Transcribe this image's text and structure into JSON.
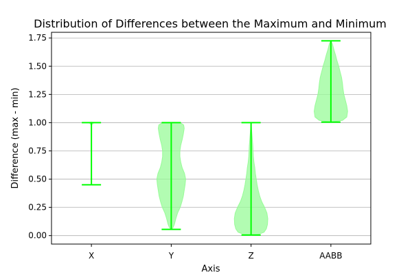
{
  "chart_data": {
    "type": "violin",
    "title": "Distribution of Differences between the Maximum and Minimum",
    "xlabel": "Axis",
    "ylabel": "Difference (max - min)",
    "categories": [
      "X",
      "Y",
      "Z",
      "AABB"
    ],
    "ylim": [
      -0.075,
      1.8
    ],
    "yticks": [
      "0.00",
      "0.25",
      "0.50",
      "0.75",
      "1.00",
      "1.25",
      "1.50",
      "1.75"
    ],
    "grid": "y",
    "colors": {
      "body": "#98fb98",
      "line": "#00ff00"
    },
    "series": [
      {
        "category": "X",
        "min": 0.45,
        "max": 1.0,
        "profile": [
          [
            0.45,
            0.0
          ],
          [
            0.97,
            0.0
          ],
          [
            0.98,
            0.01
          ],
          [
            0.99,
            0.04
          ],
          [
            1.0,
            0.08
          ],
          [
            1.005,
            0.02
          ]
        ]
      },
      {
        "category": "Y",
        "min": 0.055,
        "max": 1.0,
        "profile": [
          [
            0.055,
            0.0
          ],
          [
            0.07,
            0.06
          ],
          [
            0.1,
            0.11
          ],
          [
            0.15,
            0.16
          ],
          [
            0.2,
            0.22
          ],
          [
            0.25,
            0.31
          ],
          [
            0.3,
            0.37
          ],
          [
            0.35,
            0.42
          ],
          [
            0.4,
            0.45
          ],
          [
            0.45,
            0.48
          ],
          [
            0.5,
            0.5
          ],
          [
            0.55,
            0.46
          ],
          [
            0.6,
            0.38
          ],
          [
            0.65,
            0.33
          ],
          [
            0.7,
            0.3
          ],
          [
            0.75,
            0.3
          ],
          [
            0.8,
            0.33
          ],
          [
            0.85,
            0.38
          ],
          [
            0.9,
            0.42
          ],
          [
            0.95,
            0.45
          ],
          [
            0.98,
            0.43
          ],
          [
            1.0,
            0.3
          ]
        ]
      },
      {
        "category": "Z",
        "min": 0.005,
        "max": 1.0,
        "profile": [
          [
            0.005,
            0.0
          ],
          [
            0.01,
            0.25
          ],
          [
            0.03,
            0.45
          ],
          [
            0.06,
            0.53
          ],
          [
            0.1,
            0.57
          ],
          [
            0.15,
            0.58
          ],
          [
            0.2,
            0.55
          ],
          [
            0.25,
            0.47
          ],
          [
            0.3,
            0.37
          ],
          [
            0.35,
            0.3
          ],
          [
            0.4,
            0.25
          ],
          [
            0.45,
            0.21
          ],
          [
            0.5,
            0.18
          ],
          [
            0.55,
            0.15
          ],
          [
            0.6,
            0.13
          ],
          [
            0.65,
            0.1
          ],
          [
            0.7,
            0.08
          ],
          [
            0.8,
            0.06
          ],
          [
            0.9,
            0.03
          ],
          [
            1.0,
            0.0
          ]
        ]
      },
      {
        "category": "AABB",
        "min": 1.005,
        "max": 1.725,
        "profile": [
          [
            1.005,
            0.0
          ],
          [
            1.02,
            0.4
          ],
          [
            1.05,
            0.55
          ],
          [
            1.1,
            0.58
          ],
          [
            1.15,
            0.55
          ],
          [
            1.2,
            0.5
          ],
          [
            1.25,
            0.45
          ],
          [
            1.3,
            0.42
          ],
          [
            1.35,
            0.4
          ],
          [
            1.4,
            0.37
          ],
          [
            1.45,
            0.32
          ],
          [
            1.5,
            0.27
          ],
          [
            1.55,
            0.21
          ],
          [
            1.6,
            0.16
          ],
          [
            1.65,
            0.1
          ],
          [
            1.7,
            0.05
          ],
          [
            1.725,
            0.0
          ]
        ]
      }
    ]
  }
}
